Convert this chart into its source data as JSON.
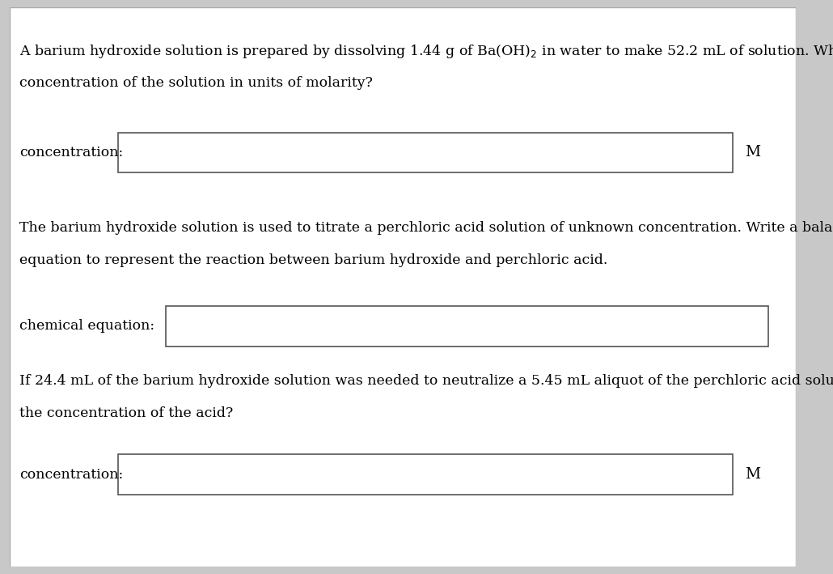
{
  "outer_bg_color": "#c8c8c8",
  "page_bg_color": "#ffffff",
  "text_color": "#000000",
  "box_edge_color": "#555555",
  "line1_para1": "A barium hydroxide solution is prepared by dissolving 1.44 g of Ba(OH)$_2$ in water to make 52.2 mL of solution. What is the",
  "line2_para1": "concentration of the solution in units of molarity?",
  "label1": "concentration:",
  "unit1": "M",
  "line1_para2": "The barium hydroxide solution is used to titrate a perchloric acid solution of unknown concentration. Write a balanced chemical",
  "line2_para2": "equation to represent the reaction between barium hydroxide and perchloric acid.",
  "label2": "chemical equation:",
  "line1_para3": "If 24.4 mL of the barium hydroxide solution was needed to neutralize a 5.45 mL aliquot of the perchloric acid solution, what is",
  "line2_para3": "the concentration of the acid?",
  "label3": "concentration:",
  "unit3": "M",
  "font_size_text": 12.5,
  "font_size_label": 12.5,
  "font_size_unit": 13.5,
  "font_family": "DejaVu Serif"
}
